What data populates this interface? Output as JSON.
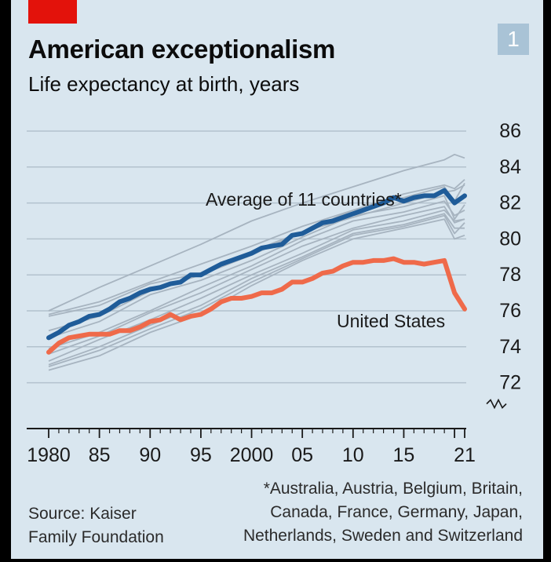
{
  "header": {
    "badge": "1",
    "title": "American exceptionalism",
    "subtitle": "Life expectancy at birth, years"
  },
  "footer": {
    "footnote_line1": "*Australia, Austria, Belgium, Britain,",
    "footnote_line2": "Canada, France, Germany, Japan,",
    "footnote_line3": "Netherlands, Sweden and Switzerland",
    "source_line1": "Source: Kaiser",
    "source_line2": "Family Foundation"
  },
  "colors": {
    "background": "#d9e6ef",
    "average": "#1f5c99",
    "united_states": "#ef6a4a",
    "other_countries": "#a7b4c0",
    "brand_red": "#e3120b"
  },
  "chart_data": {
    "type": "line",
    "x_tick_labels": [
      "1980",
      "85",
      "90",
      "95",
      "2000",
      "05",
      "10",
      "15",
      "21"
    ],
    "y_tick_labels": [
      "72",
      "74",
      "76",
      "78",
      "80",
      "82",
      "84",
      "86"
    ],
    "ylim": [
      71,
      86
    ],
    "y_axis_break": true,
    "grid": true,
    "annotations": [
      "Average of 11 countries*",
      "United States"
    ],
    "series": [
      {
        "name": "Average of 11 countries*",
        "color": "#1f5c99",
        "x": [
          1980,
          1981,
          1982,
          1983,
          1984,
          1985,
          1986,
          1987,
          1988,
          1989,
          1990,
          1991,
          1992,
          1993,
          1994,
          1995,
          1996,
          1997,
          1998,
          1999,
          2000,
          2001,
          2002,
          2003,
          2004,
          2005,
          2006,
          2007,
          2008,
          2009,
          2010,
          2011,
          2012,
          2013,
          2014,
          2015,
          2016,
          2017,
          2018,
          2019,
          2020,
          2021
        ],
        "values": [
          74.5,
          74.8,
          75.2,
          75.4,
          75.7,
          75.8,
          76.1,
          76.5,
          76.7,
          77.0,
          77.2,
          77.3,
          77.5,
          77.6,
          78.0,
          78.0,
          78.3,
          78.6,
          78.8,
          79.0,
          79.2,
          79.5,
          79.6,
          79.7,
          80.2,
          80.3,
          80.6,
          80.9,
          81.0,
          81.2,
          81.4,
          81.6,
          81.8,
          82.0,
          82.3,
          82.1,
          82.3,
          82.4,
          82.4,
          82.7,
          82.0,
          82.4
        ]
      },
      {
        "name": "United States",
        "color": "#ef6a4a",
        "x": [
          1980,
          1981,
          1982,
          1983,
          1984,
          1985,
          1986,
          1987,
          1988,
          1989,
          1990,
          1991,
          1992,
          1993,
          1994,
          1995,
          1996,
          1997,
          1998,
          1999,
          2000,
          2001,
          2002,
          2003,
          2004,
          2005,
          2006,
          2007,
          2008,
          2009,
          2010,
          2011,
          2012,
          2013,
          2014,
          2015,
          2016,
          2017,
          2018,
          2019,
          2020,
          2021
        ],
        "values": [
          73.7,
          74.2,
          74.5,
          74.6,
          74.7,
          74.7,
          74.7,
          74.9,
          74.9,
          75.1,
          75.4,
          75.5,
          75.8,
          75.5,
          75.7,
          75.8,
          76.1,
          76.5,
          76.7,
          76.7,
          76.8,
          77.0,
          77.0,
          77.2,
          77.6,
          77.6,
          77.8,
          78.1,
          78.2,
          78.5,
          78.7,
          78.7,
          78.8,
          78.8,
          78.9,
          78.7,
          78.7,
          78.6,
          78.7,
          78.8,
          77.0,
          76.1
        ]
      }
    ],
    "background_series": [
      {
        "x": [
          1980,
          1985,
          1990,
          1995,
          2000,
          2005,
          2010,
          2015,
          2019,
          2020,
          2021
        ],
        "values": [
          76.0,
          77.3,
          78.5,
          79.7,
          81.0,
          82.0,
          82.9,
          83.8,
          84.4,
          84.7,
          84.5
        ]
      },
      {
        "x": [
          1980,
          1985,
          1990,
          1995,
          2000,
          2005,
          2010,
          2015,
          2019,
          2020,
          2021
        ],
        "values": [
          75.8,
          76.5,
          77.6,
          78.6,
          79.6,
          80.7,
          81.6,
          82.5,
          83.0,
          82.8,
          83.3
        ]
      },
      {
        "x": [
          1980,
          1985,
          1990,
          1995,
          2000,
          2005,
          2010,
          2015,
          2019,
          2020,
          2021
        ],
        "values": [
          75.7,
          76.3,
          77.5,
          78.1,
          79.3,
          80.4,
          81.6,
          82.3,
          82.9,
          82.1,
          83.1
        ]
      },
      {
        "x": [
          1980,
          1985,
          1990,
          1995,
          2000,
          2005,
          2010,
          2015,
          2019,
          2020,
          2021
        ],
        "values": [
          74.9,
          75.7,
          77.1,
          78.0,
          79.1,
          80.4,
          81.2,
          82.0,
          82.6,
          82.7,
          83.0
        ]
      },
      {
        "x": [
          1980,
          1985,
          1990,
          1995,
          2000,
          2005,
          2010,
          2015,
          2019,
          2020,
          2021
        ],
        "values": [
          74.5,
          75.4,
          76.9,
          77.7,
          78.8,
          80.1,
          81.3,
          81.8,
          82.4,
          81.1,
          81.9
        ]
      },
      {
        "x": [
          1980,
          1985,
          1990,
          1995,
          2000,
          2005,
          2010,
          2015,
          2019,
          2020,
          2021
        ],
        "values": [
          73.9,
          74.8,
          76.0,
          77.3,
          78.5,
          79.9,
          81.0,
          81.5,
          82.1,
          81.3,
          81.6
        ]
      },
      {
        "x": [
          1980,
          1985,
          1990,
          1995,
          2000,
          2005,
          2010,
          2015,
          2019,
          2020,
          2021
        ],
        "values": [
          73.6,
          74.6,
          75.9,
          77.0,
          78.3,
          79.6,
          80.6,
          81.3,
          81.8,
          80.9,
          81.1
        ]
      },
      {
        "x": [
          1980,
          1985,
          1990,
          1995,
          2000,
          2005,
          2010,
          2015,
          2019,
          2020,
          2021
        ],
        "values": [
          73.2,
          74.4,
          75.5,
          76.7,
          78.0,
          79.2,
          80.5,
          81.0,
          81.6,
          81.0,
          81.1
        ]
      },
      {
        "x": [
          1980,
          1985,
          1990,
          1995,
          2000,
          2005,
          2010,
          2015,
          2019,
          2020,
          2021
        ],
        "values": [
          73.0,
          74.0,
          75.2,
          76.3,
          77.8,
          79.0,
          80.3,
          80.8,
          81.4,
          80.6,
          80.6
        ]
      },
      {
        "x": [
          1980,
          1985,
          1990,
          1995,
          2000,
          2005,
          2010,
          2015,
          2019,
          2020,
          2021
        ],
        "values": [
          72.9,
          73.8,
          75.0,
          76.1,
          77.6,
          78.9,
          80.2,
          80.7,
          81.3,
          80.3,
          80.9
        ]
      },
      {
        "x": [
          1980,
          1985,
          1990,
          1995,
          2000,
          2005,
          2010,
          2015,
          2019,
          2020,
          2021
        ],
        "values": [
          72.7,
          73.5,
          74.8,
          75.8,
          77.4,
          78.8,
          80.0,
          80.6,
          81.1,
          80.0,
          80.2
        ]
      }
    ]
  }
}
